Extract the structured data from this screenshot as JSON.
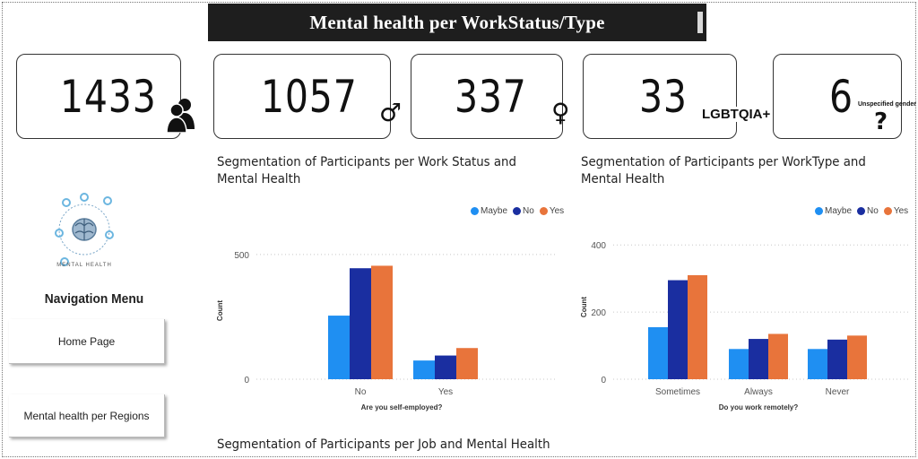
{
  "header": {
    "title": "Mental health per WorkStatus/Type"
  },
  "kpis": [
    {
      "value": "1433",
      "icon": "people-icon"
    },
    {
      "value": "1057",
      "icon": "male-icon",
      "symbol": "♂"
    },
    {
      "value": "337",
      "icon": "female-icon",
      "symbol": "♀"
    },
    {
      "value": "33",
      "label": "LGBTQIA+"
    },
    {
      "value": "6",
      "label": "Unspecified gender",
      "symbol": "?"
    }
  ],
  "sidebar": {
    "logo_text": "MENTAL HEALTH",
    "title": "Navigation Menu",
    "buttons": [
      "Home Page",
      "Mental health per Regions"
    ]
  },
  "colors": {
    "maybe": "#1f8ff2",
    "no": "#1a2ea0",
    "yes": "#e8743b"
  },
  "legend": [
    "Maybe",
    "No",
    "Yes"
  ],
  "sections": {
    "work_status_title": "Segmentation of Participants per Work Status and Mental Health",
    "work_type_title": "Segmentation of Participants per WorkType and Mental Health",
    "job_title": "Segmentation of Participants per Job and Mental Health"
  },
  "chart_data": [
    {
      "type": "bar",
      "categories": [
        "No",
        "Yes"
      ],
      "series": [
        {
          "name": "Maybe",
          "values": [
            255,
            75
          ]
        },
        {
          "name": "No",
          "values": [
            445,
            95
          ]
        },
        {
          "name": "Yes",
          "values": [
            455,
            125
          ]
        }
      ],
      "xlabel": "Are you self-employed?",
      "ylabel": "Count",
      "yticks": [
        0,
        500
      ],
      "ylim": [
        0,
        550
      ]
    },
    {
      "type": "bar",
      "categories": [
        "Sometimes",
        "Always",
        "Never"
      ],
      "series": [
        {
          "name": "Maybe",
          "values": [
            155,
            90,
            90
          ]
        },
        {
          "name": "No",
          "values": [
            295,
            120,
            118
          ]
        },
        {
          "name": "Yes",
          "values": [
            310,
            135,
            130
          ]
        }
      ],
      "xlabel": "Do you work remotely?",
      "ylabel": "Count",
      "yticks": [
        0,
        200,
        400
      ],
      "ylim": [
        0,
        430
      ]
    }
  ]
}
